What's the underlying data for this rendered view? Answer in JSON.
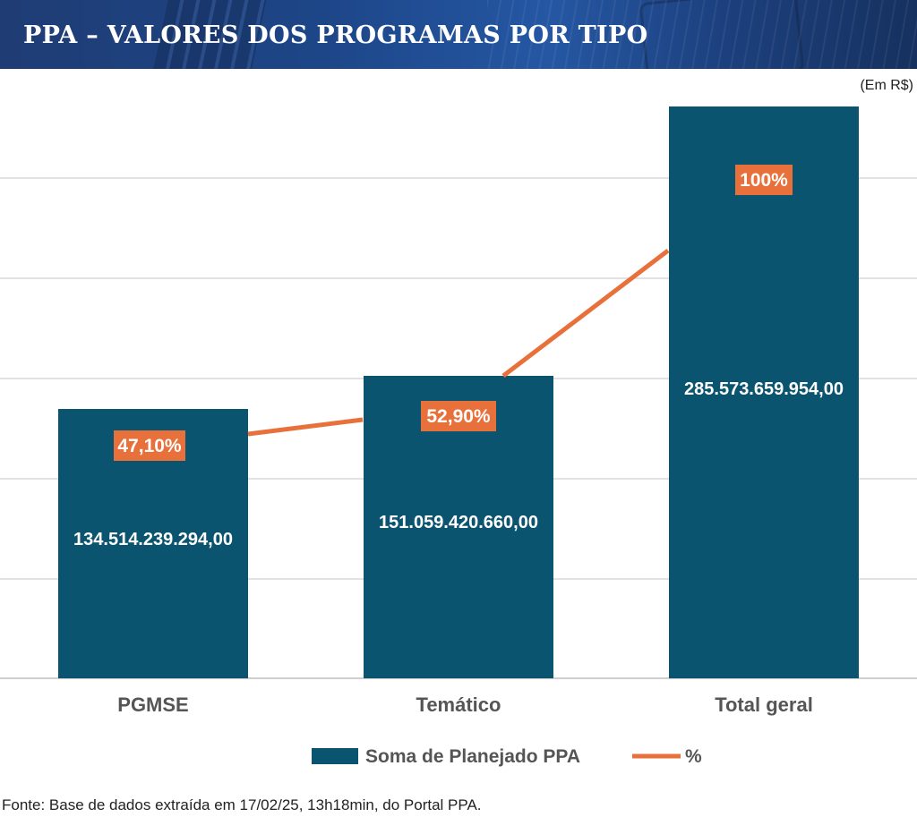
{
  "header": {
    "title": "PPA – VALORES DOS PROGRAMAS POR TIPO"
  },
  "unit_label": "(Em R$)",
  "source": "Fonte: Base de dados extraída em 17/02/25, 13h18min, do Portal PPA.",
  "colors": {
    "bar": "#0b5470",
    "line": "#e8703a",
    "header": "#1f4a8c",
    "grid": "#d9d9d9"
  },
  "chart_data": {
    "type": "bar",
    "categories": [
      "PGMSE",
      "Temático",
      "Total geral"
    ],
    "series": [
      {
        "name": "Soma de Planejado PPA",
        "type": "bar",
        "values": [
          134514239294.0,
          151059420660.0,
          285573659954.0
        ],
        "labels": [
          "134.514.239.294,00",
          "151.059.420.660,00",
          "285.573.659.954,00"
        ]
      },
      {
        "name": "%",
        "type": "line",
        "values": [
          47.1,
          52.9,
          100
        ],
        "labels": [
          "47,10%",
          "52,90%",
          "100%"
        ]
      }
    ],
    "ylim": [
      0,
      285573659954.0
    ],
    "grid": true,
    "legend": "bottom",
    "title": "PPA – VALORES DOS PROGRAMAS POR TIPO"
  }
}
